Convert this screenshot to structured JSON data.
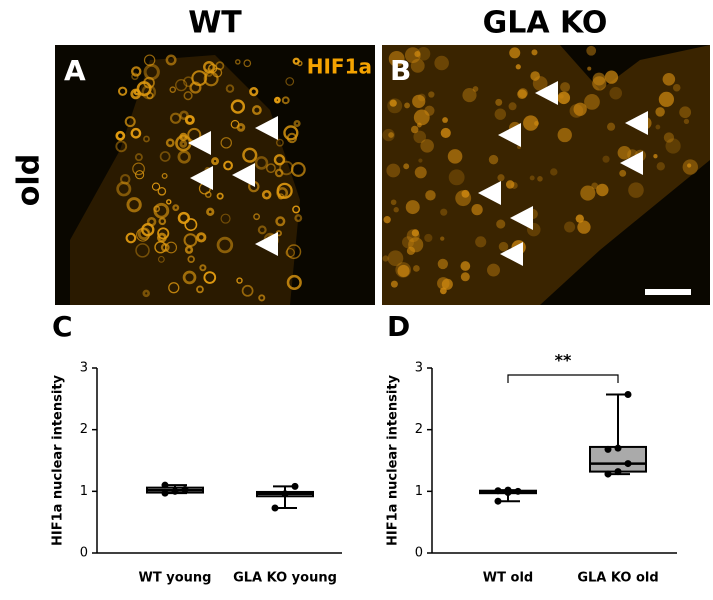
{
  "panels": {
    "col1": "WT",
    "col2": "GLA KO",
    "row": "old",
    "stain": "HIF1a",
    "a": "A",
    "b": "B"
  },
  "chart_data": [
    {
      "type": "box",
      "panel": "C",
      "ylabel": "HIF1a nuclear intensity",
      "categories": [
        "WT young",
        "GLA KO young"
      ],
      "ylim": [
        0,
        3
      ],
      "yticks": [
        0,
        1,
        2,
        3
      ],
      "boxes": [
        {
          "min": 0.97,
          "q1": 0.98,
          "median": 1.02,
          "q3": 1.06,
          "max": 1.1,
          "points": [
            0.97,
            1.0,
            1.03,
            1.1
          ]
        },
        {
          "min": 0.73,
          "q1": 0.92,
          "median": 0.96,
          "q3": 0.99,
          "max": 1.08,
          "points": [
            0.73,
            0.96,
            1.08
          ]
        }
      ]
    },
    {
      "type": "box",
      "panel": "D",
      "ylabel": "HIF1a nuclear intensity",
      "categories": [
        "WT old",
        "GLA KO old"
      ],
      "ylim": [
        0,
        3
      ],
      "yticks": [
        0,
        1,
        2,
        3
      ],
      "significance": "**",
      "boxes": [
        {
          "min": 0.84,
          "q1": 0.97,
          "median": 1.0,
          "q3": 1.01,
          "max": 1.02,
          "points": [
            0.84,
            0.98,
            1.0,
            1.01,
            1.02
          ]
        },
        {
          "min": 1.28,
          "q1": 1.32,
          "median": 1.45,
          "q3": 1.72,
          "max": 2.57,
          "points": [
            1.28,
            1.32,
            1.45,
            1.68,
            1.7,
            2.57
          ]
        }
      ]
    }
  ]
}
